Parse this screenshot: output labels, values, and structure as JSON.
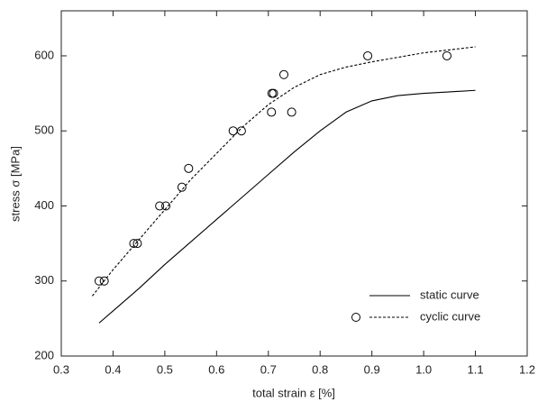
{
  "chart_data": {
    "type": "line",
    "xlabel": "total strain ε [%]",
    "ylabel": "stress σ [MPa]",
    "xlim": [
      0.3,
      1.2
    ],
    "ylim": [
      200,
      660
    ],
    "xticks": [
      0.3,
      0.4,
      0.5,
      0.6,
      0.7,
      0.8,
      0.9,
      {
        "value": 1,
        "label": "1.0"
      },
      1.1,
      1.2
    ],
    "yticks": [
      200,
      300,
      400,
      500,
      600
    ],
    "legend": "lower right",
    "series": [
      {
        "name": "static curve",
        "color": "#000000",
        "style": "solid",
        "x": [
          0.373,
          0.45,
          0.5,
          0.55,
          0.6,
          0.65,
          0.7,
          0.75,
          0.8,
          0.85,
          0.9,
          0.95,
          1.0,
          1.05,
          1.1
        ],
        "values": [
          244,
          290,
          322,
          352,
          382,
          412,
          442,
          472,
          500,
          525,
          540,
          547,
          550,
          552,
          554
        ]
      },
      {
        "name": "cyclic curve",
        "color": "#000000",
        "style": "dashed",
        "x": [
          0.36,
          0.4,
          0.45,
          0.5,
          0.55,
          0.6,
          0.65,
          0.7,
          0.75,
          0.8,
          0.85,
          0.9,
          0.95,
          1.0,
          1.05,
          1.1
        ],
        "values": [
          280,
          315,
          355,
          395,
          435,
          470,
          505,
          535,
          558,
          575,
          585,
          592,
          598,
          604,
          608,
          612
        ],
        "markers": {
          "x": [
            0.373,
            0.383,
            0.44,
            0.447,
            0.49,
            0.502,
            0.533,
            0.546,
            0.632,
            0.648,
            0.707,
            0.71,
            0.706,
            0.73,
            0.745,
            0.892,
            1.045
          ],
          "y": [
            300,
            300,
            350,
            350,
            400,
            400,
            425,
            450,
            500,
            500,
            550,
            550,
            525,
            575,
            525,
            600,
            600
          ]
        }
      }
    ]
  }
}
